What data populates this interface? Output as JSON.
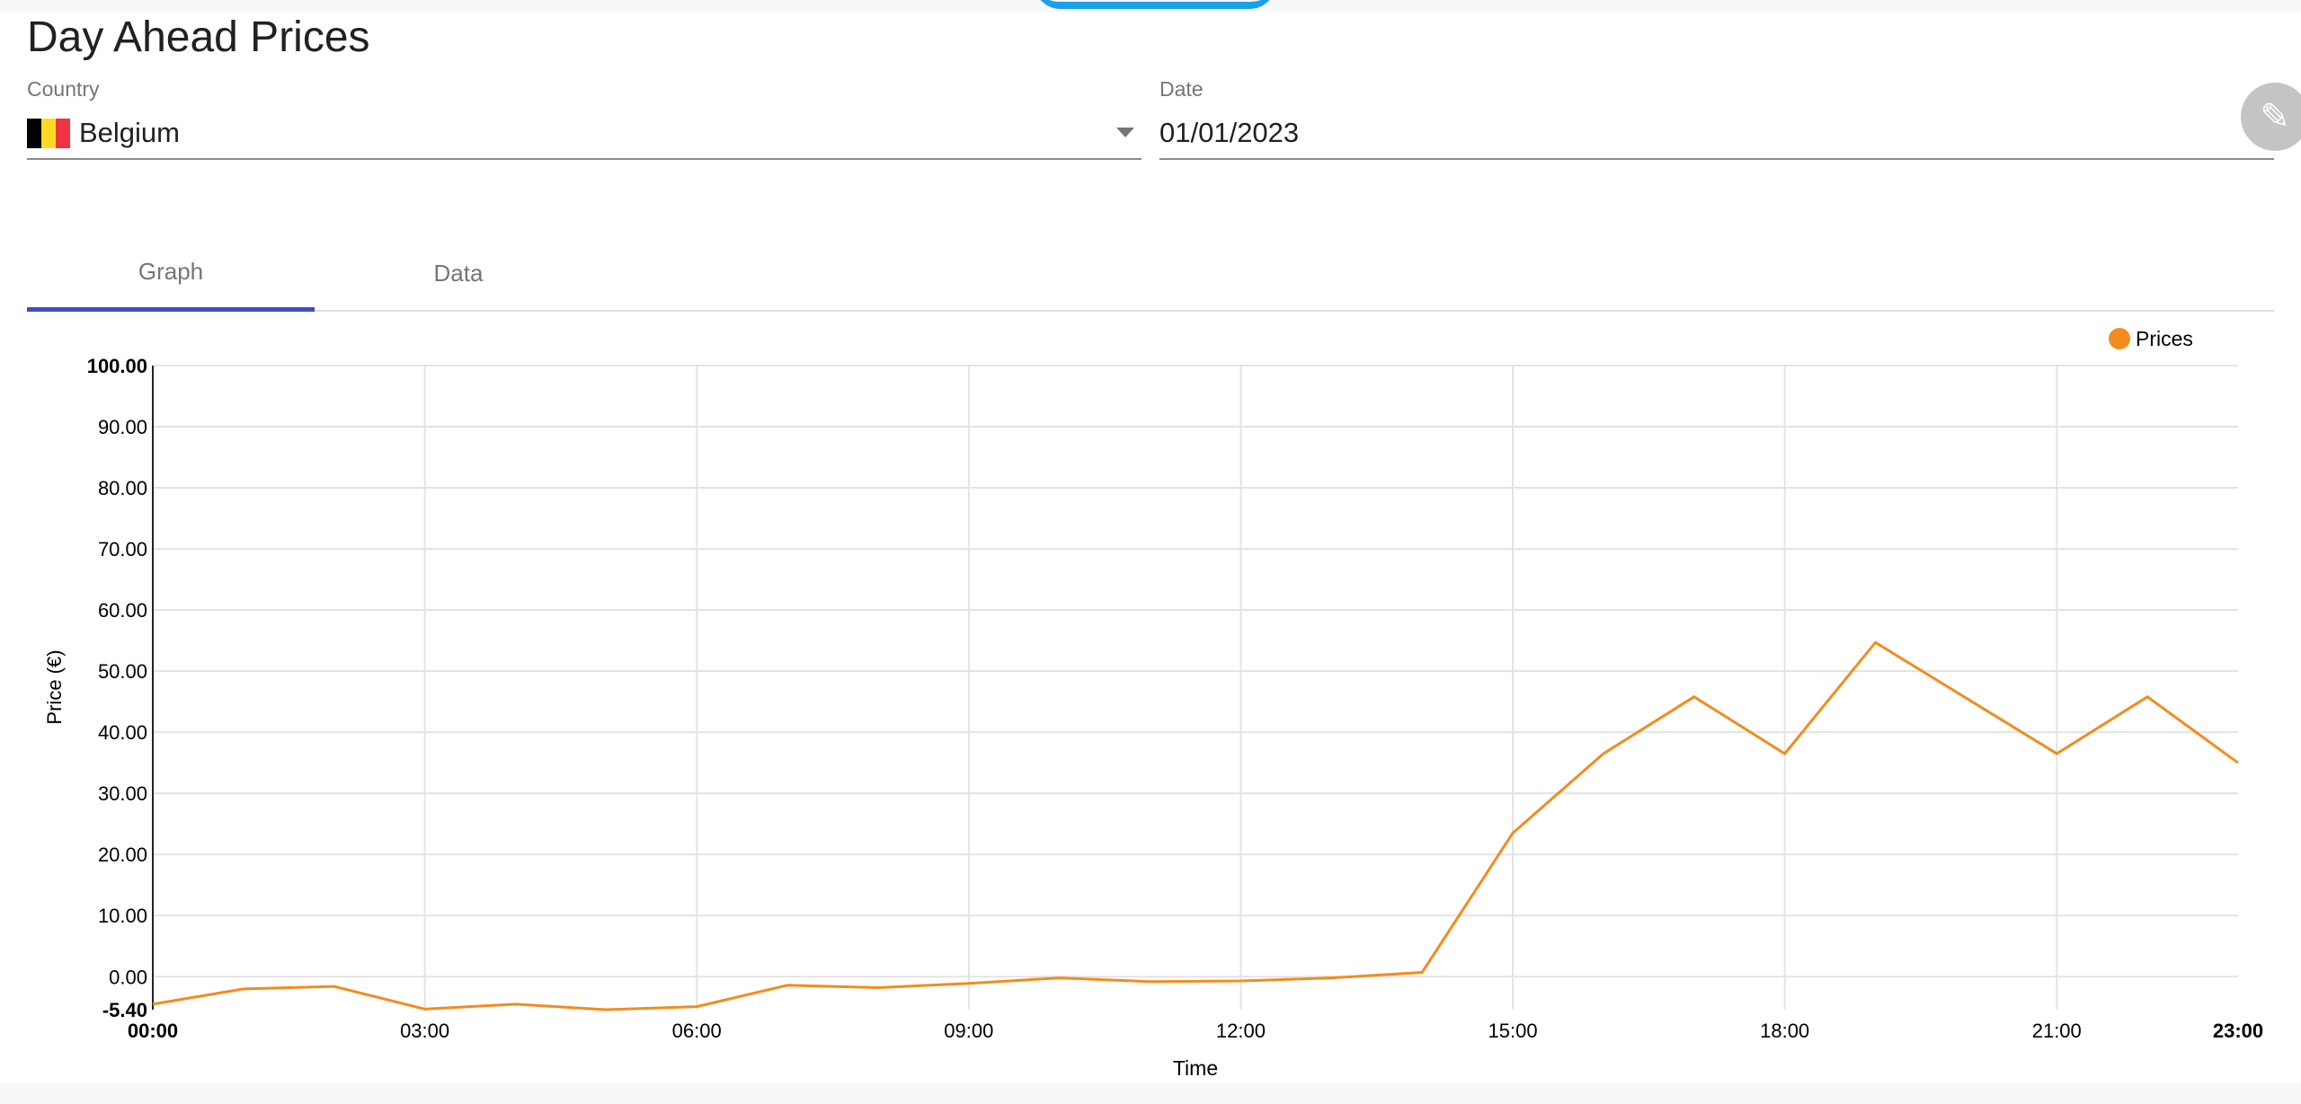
{
  "page": {
    "title": "Day Ahead Prices"
  },
  "country": {
    "label": "Country",
    "value": "Belgium",
    "flag_colors": [
      "#000000",
      "#FDDA24",
      "#EF3340"
    ]
  },
  "date": {
    "label": "Date",
    "value": "01/01/2023"
  },
  "tabs": [
    {
      "label": "Graph",
      "active": true
    },
    {
      "label": "Data",
      "active": false
    }
  ],
  "chart_data": {
    "type": "line",
    "title": "",
    "xlabel": "Time",
    "ylabel": "Price (€)",
    "x": [
      "00:00",
      "01:00",
      "02:00",
      "03:00",
      "04:00",
      "05:00",
      "06:00",
      "07:00",
      "08:00",
      "09:00",
      "10:00",
      "11:00",
      "12:00",
      "13:00",
      "14:00",
      "15:00",
      "16:00",
      "17:00",
      "18:00",
      "19:00",
      "20:00",
      "21:00",
      "22:00",
      "23:00"
    ],
    "x_ticks": [
      "00:00",
      "03:00",
      "06:00",
      "09:00",
      "12:00",
      "15:00",
      "18:00",
      "21:00",
      "23:00"
    ],
    "y_ticks": [
      "100.00",
      "90.00",
      "80.00",
      "70.00",
      "60.00",
      "50.00",
      "40.00",
      "30.00",
      "20.00",
      "10.00",
      "0.00",
      "-5.40"
    ],
    "ylim": [
      -5.4,
      100
    ],
    "grid": true,
    "legend_position": "top-right",
    "series": [
      {
        "name": "Prices",
        "color": "#f28c1e",
        "values": [
          -4.5,
          -2.0,
          -1.6,
          -5.3,
          -4.5,
          -5.4,
          -4.9,
          -1.4,
          -1.8,
          -1.1,
          -0.2,
          -0.8,
          -0.7,
          -0.2,
          0.7,
          23.5,
          36.5,
          45.8,
          36.5,
          54.7,
          45.6,
          36.5,
          45.8,
          35.0
        ]
      }
    ]
  }
}
